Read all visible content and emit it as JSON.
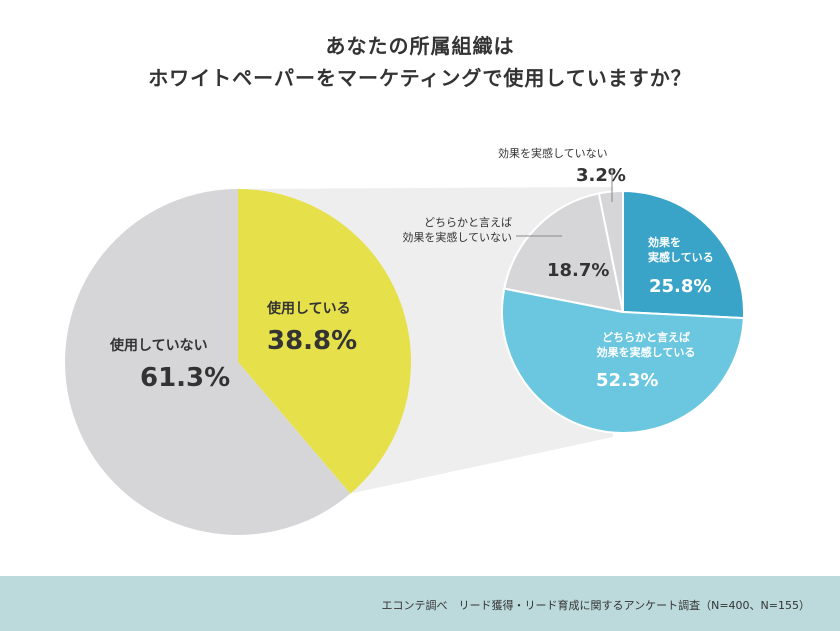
{
  "title_line1": "あなたの所属組織は",
  "title_line2": "ホワイトペーパーをマーケティングで使用していますか？",
  "footer": "エコンテ調べ　リード獲得・リード育成に関するアンケート調査（N=400、N=155）",
  "colors": {
    "main_used": "#e6e04b",
    "main_not_used": "#d6d6d8",
    "effective": "#3aa4c8",
    "somewhat_effective": "#6bc7e0",
    "somewhat_not_effective": "#d6d6d8",
    "not_effective": "#d6d6d8",
    "connector": "#eeeeee",
    "footer_bg": "#bcd9dc"
  },
  "chart_data": [
    {
      "type": "pie",
      "slices": [
        {
          "label": "使用している",
          "value": 38.8,
          "value_label": "38.8%"
        },
        {
          "label": "使用していない",
          "value": 61.3,
          "value_label": "61.3%"
        }
      ]
    },
    {
      "type": "pie",
      "slices": [
        {
          "label": "効果を 実感している",
          "label_lines": [
            "効果を",
            "実感している"
          ],
          "value": 25.8,
          "value_label": "25.8%"
        },
        {
          "label": "どちらかと言えば 効果を実感している",
          "label_lines": [
            "どちらかと言えば",
            "効果を実感している"
          ],
          "value": 52.3,
          "value_label": "52.3%"
        },
        {
          "label": "どちらかと言えば 効果を実感していない",
          "label_lines": [
            "どちらかと言えば",
            "効果を実感していない"
          ],
          "value": 18.7,
          "value_label": "18.7%"
        },
        {
          "label": "効果を実感していない",
          "label_lines": [
            "効果を実感していない"
          ],
          "value": 3.2,
          "value_label": "3.2%"
        }
      ]
    }
  ]
}
